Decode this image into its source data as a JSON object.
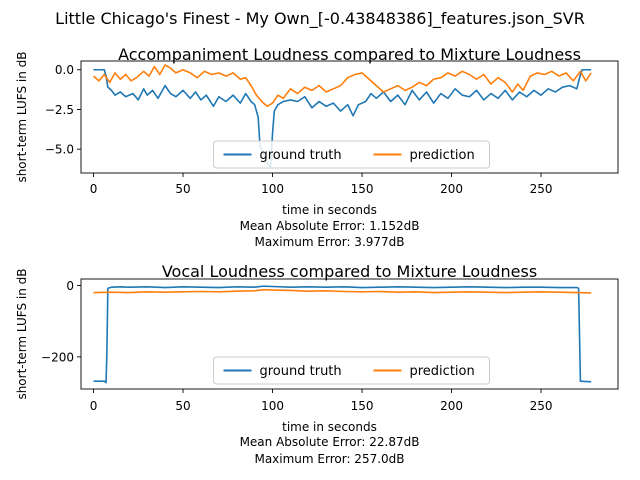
{
  "figure": {
    "suptitle": "Little Chicago's Finest - My Own_[-0.43848386]_features.json_SVR"
  },
  "colors": {
    "ground_truth": "#1f77b4",
    "prediction": "#ff7f0e"
  },
  "chart_data": [
    {
      "type": "line",
      "title": "Accompaniment Loudness compared to Mixture Loudness",
      "xlabel": "time in seconds",
      "ylabel": "short-term LUFS in dB",
      "xlim": [
        -7,
        293
      ],
      "ylim": [
        -6.5,
        0.55
      ],
      "xticks": [
        0,
        50,
        100,
        150,
        200,
        250
      ],
      "yticks": [
        0.0,
        -2.5,
        -5.0
      ],
      "ytick_labels": [
        "0.0",
        "−2.5",
        "−5.0"
      ],
      "xtick_labels": [
        "0",
        "50",
        "100",
        "150",
        "200",
        "250"
      ],
      "legend": {
        "placement": "lower center",
        "ncol": 2
      },
      "metrics": [
        "Mean Absolute Error: 1.152dB",
        "Maximum Error: 3.977dB"
      ],
      "series": [
        {
          "name": "ground truth",
          "color_key": "ground_truth",
          "points": [
            [
              0,
              0
            ],
            [
              6,
              0
            ],
            [
              7,
              -0.4
            ],
            [
              8,
              -1.1
            ],
            [
              10,
              -1.3
            ],
            [
              12,
              -1.6
            ],
            [
              15,
              -1.4
            ],
            [
              18,
              -1.7
            ],
            [
              22,
              -1.5
            ],
            [
              25,
              -1.9
            ],
            [
              28,
              -1.2
            ],
            [
              30,
              -1.6
            ],
            [
              33,
              -1.3
            ],
            [
              36,
              -1.8
            ],
            [
              40,
              -1.0
            ],
            [
              43,
              -1.5
            ],
            [
              46,
              -1.7
            ],
            [
              50,
              -1.3
            ],
            [
              54,
              -1.8
            ],
            [
              57,
              -1.4
            ],
            [
              60,
              -1.9
            ],
            [
              63,
              -1.6
            ],
            [
              67,
              -2.3
            ],
            [
              70,
              -1.7
            ],
            [
              74,
              -2.0
            ],
            [
              78,
              -1.6
            ],
            [
              82,
              -2.1
            ],
            [
              85,
              -1.5
            ],
            [
              88,
              -2.0
            ],
            [
              90,
              -2.2
            ],
            [
              92,
              -3.0
            ],
            [
              93,
              -4.8
            ],
            [
              95,
              -5.3
            ],
            [
              97,
              -5.9
            ],
            [
              99,
              -6.1
            ],
            [
              100,
              -4.0
            ],
            [
              101,
              -2.6
            ],
            [
              103,
              -2.2
            ],
            [
              106,
              -2.0
            ],
            [
              110,
              -1.9
            ],
            [
              114,
              -2.0
            ],
            [
              118,
              -1.7
            ],
            [
              122,
              -2.4
            ],
            [
              126,
              -2.0
            ],
            [
              130,
              -2.3
            ],
            [
              134,
              -2.1
            ],
            [
              138,
              -2.6
            ],
            [
              142,
              -2.2
            ],
            [
              145,
              -2.9
            ],
            [
              148,
              -2.2
            ],
            [
              152,
              -2.0
            ],
            [
              155,
              -1.5
            ],
            [
              158,
              -1.8
            ],
            [
              162,
              -1.4
            ],
            [
              166,
              -2.0
            ],
            [
              170,
              -1.6
            ],
            [
              174,
              -2.2
            ],
            [
              178,
              -1.3
            ],
            [
              182,
              -1.9
            ],
            [
              186,
              -1.4
            ],
            [
              190,
              -2.1
            ],
            [
              194,
              -1.5
            ],
            [
              198,
              -1.8
            ],
            [
              202,
              -1.2
            ],
            [
              206,
              -1.6
            ],
            [
              210,
              -1.7
            ],
            [
              214,
              -1.3
            ],
            [
              218,
              -1.9
            ],
            [
              222,
              -1.5
            ],
            [
              226,
              -1.8
            ],
            [
              230,
              -1.3
            ],
            [
              234,
              -1.9
            ],
            [
              238,
              -1.4
            ],
            [
              242,
              -1.7
            ],
            [
              246,
              -1.3
            ],
            [
              250,
              -1.6
            ],
            [
              254,
              -1.2
            ],
            [
              258,
              -1.4
            ],
            [
              262,
              -1.1
            ],
            [
              266,
              -1.0
            ],
            [
              270,
              -1.2
            ],
            [
              272,
              -0.3
            ],
            [
              273,
              0
            ],
            [
              278,
              0
            ]
          ]
        },
        {
          "name": "prediction",
          "color_key": "prediction",
          "points": [
            [
              0,
              -0.4
            ],
            [
              3,
              -0.7
            ],
            [
              6,
              -0.3
            ],
            [
              9,
              -0.8
            ],
            [
              12,
              -0.2
            ],
            [
              15,
              -0.6
            ],
            [
              18,
              -0.3
            ],
            [
              21,
              -0.7
            ],
            [
              24,
              -0.5
            ],
            [
              28,
              -0.1
            ],
            [
              31,
              -0.4
            ],
            [
              34,
              0.2
            ],
            [
              37,
              -0.3
            ],
            [
              40,
              0.3
            ],
            [
              43,
              0.1
            ],
            [
              46,
              -0.2
            ],
            [
              50,
              0.0
            ],
            [
              54,
              -0.2
            ],
            [
              58,
              -0.5
            ],
            [
              62,
              -0.1
            ],
            [
              66,
              -0.3
            ],
            [
              70,
              -0.2
            ],
            [
              74,
              -0.4
            ],
            [
              78,
              -0.2
            ],
            [
              82,
              -0.6
            ],
            [
              85,
              -0.5
            ],
            [
              88,
              -1.0
            ],
            [
              91,
              -1.6
            ],
            [
              94,
              -2.0
            ],
            [
              97,
              -2.3
            ],
            [
              100,
              -2.1
            ],
            [
              103,
              -1.6
            ],
            [
              106,
              -1.8
            ],
            [
              110,
              -1.2
            ],
            [
              114,
              -1.5
            ],
            [
              118,
              -1.1
            ],
            [
              122,
              -1.3
            ],
            [
              126,
              -1.0
            ],
            [
              130,
              -1.4
            ],
            [
              134,
              -1.2
            ],
            [
              138,
              -1.0
            ],
            [
              142,
              -0.5
            ],
            [
              146,
              -0.3
            ],
            [
              150,
              -0.2
            ],
            [
              154,
              -0.6
            ],
            [
              158,
              -1.0
            ],
            [
              162,
              -1.4
            ],
            [
              166,
              -1.2
            ],
            [
              170,
              -1.0
            ],
            [
              174,
              -1.3
            ],
            [
              178,
              -1.1
            ],
            [
              182,
              -0.8
            ],
            [
              186,
              -1.0
            ],
            [
              190,
              -0.6
            ],
            [
              194,
              -0.5
            ],
            [
              198,
              -0.2
            ],
            [
              202,
              -0.4
            ],
            [
              206,
              -0.1
            ],
            [
              210,
              -0.3
            ],
            [
              214,
              -0.6
            ],
            [
              218,
              -0.3
            ],
            [
              222,
              -0.9
            ],
            [
              226,
              -0.5
            ],
            [
              230,
              -0.8
            ],
            [
              234,
              -1.4
            ],
            [
              237,
              -0.9
            ],
            [
              240,
              -1.3
            ],
            [
              244,
              -0.4
            ],
            [
              248,
              -0.2
            ],
            [
              252,
              -0.3
            ],
            [
              256,
              -0.1
            ],
            [
              260,
              -0.4
            ],
            [
              264,
              -0.2
            ],
            [
              268,
              -0.7
            ],
            [
              272,
              -0.1
            ],
            [
              275,
              -0.7
            ],
            [
              278,
              -0.2
            ]
          ]
        }
      ]
    },
    {
      "type": "line",
      "title": "Vocal Loudness compared to Mixture Loudness",
      "xlabel": "time in seconds",
      "ylabel": "short-term LUFS in dB",
      "xlim": [
        -7,
        293
      ],
      "ylim": [
        -290,
        18
      ],
      "xticks": [
        0,
        50,
        100,
        150,
        200,
        250
      ],
      "yticks": [
        0,
        -200
      ],
      "ytick_labels": [
        "0",
        "−200"
      ],
      "xtick_labels": [
        "0",
        "50",
        "100",
        "150",
        "200",
        "250"
      ],
      "legend": {
        "placement": "lower center",
        "ncol": 2
      },
      "metrics": [
        "Mean Absolute Error: 22.87dB",
        "Maximum Error: 257.0dB"
      ],
      "series": [
        {
          "name": "ground truth",
          "color_key": "ground_truth",
          "points": [
            [
              0,
              -268
            ],
            [
              6,
              -268
            ],
            [
              7,
              -272
            ],
            [
              7.5,
              -180
            ],
            [
              8,
              -8
            ],
            [
              10,
              -5
            ],
            [
              15,
              -4
            ],
            [
              20,
              -5
            ],
            [
              30,
              -4
            ],
            [
              40,
              -6
            ],
            [
              50,
              -4
            ],
            [
              60,
              -5
            ],
            [
              70,
              -6
            ],
            [
              80,
              -4
            ],
            [
              90,
              -5
            ],
            [
              95,
              -2
            ],
            [
              100,
              -3
            ],
            [
              110,
              -5
            ],
            [
              120,
              -4
            ],
            [
              130,
              -5
            ],
            [
              140,
              -4
            ],
            [
              150,
              -6
            ],
            [
              160,
              -5
            ],
            [
              170,
              -4
            ],
            [
              180,
              -5
            ],
            [
              190,
              -6
            ],
            [
              200,
              -5
            ],
            [
              210,
              -4
            ],
            [
              220,
              -5
            ],
            [
              230,
              -6
            ],
            [
              240,
              -5
            ],
            [
              250,
              -5
            ],
            [
              260,
              -6
            ],
            [
              270,
              -6
            ],
            [
              271,
              -8
            ],
            [
              272,
              -268
            ],
            [
              278,
              -270
            ]
          ]
        },
        {
          "name": "prediction",
          "color_key": "prediction",
          "points": [
            [
              0,
              -20
            ],
            [
              10,
              -19
            ],
            [
              20,
              -20
            ],
            [
              30,
              -18
            ],
            [
              40,
              -19
            ],
            [
              50,
              -18
            ],
            [
              60,
              -17
            ],
            [
              70,
              -18
            ],
            [
              80,
              -16
            ],
            [
              90,
              -15
            ],
            [
              95,
              -12
            ],
            [
              100,
              -13
            ],
            [
              110,
              -14
            ],
            [
              120,
              -16
            ],
            [
              130,
              -15
            ],
            [
              140,
              -17
            ],
            [
              150,
              -18
            ],
            [
              160,
              -17
            ],
            [
              170,
              -19
            ],
            [
              180,
              -18
            ],
            [
              190,
              -20
            ],
            [
              200,
              -19
            ],
            [
              210,
              -18
            ],
            [
              220,
              -19
            ],
            [
              230,
              -20
            ],
            [
              240,
              -19
            ],
            [
              250,
              -18
            ],
            [
              260,
              -19
            ],
            [
              270,
              -20
            ],
            [
              278,
              -21
            ]
          ]
        }
      ]
    }
  ]
}
